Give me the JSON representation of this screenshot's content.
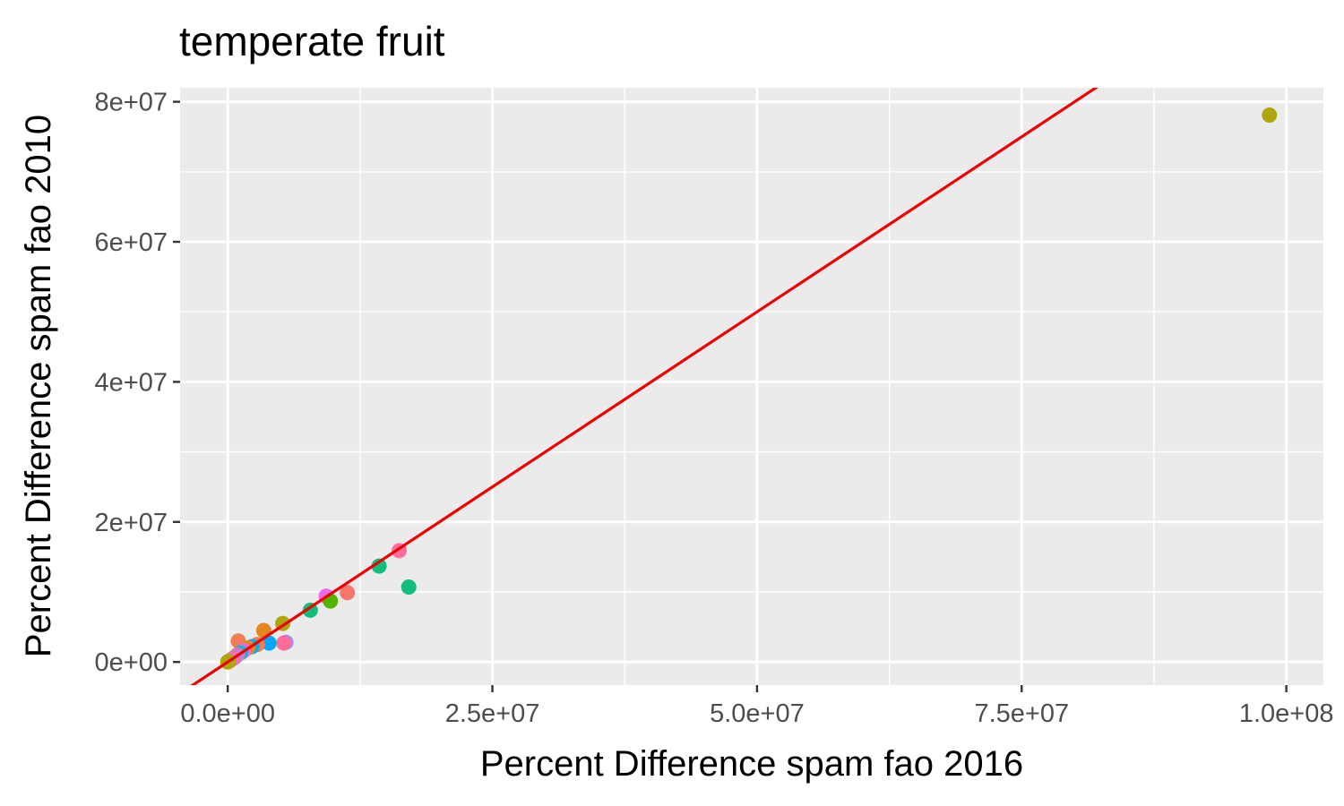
{
  "chart_data": {
    "type": "scatter",
    "title": "temperate fruit",
    "xlabel": "Percent Difference spam fao 2016",
    "ylabel": "Percent Difference spam fao 2010",
    "xlim": [
      -4500000,
      103500000
    ],
    "ylim": [
      -3300000,
      82000000
    ],
    "x_ticks": [
      0,
      25000000,
      50000000,
      75000000,
      100000000
    ],
    "x_tick_labels": [
      "0.0e+00",
      "2.5e+07",
      "5.0e+07",
      "7.5e+07",
      "1.0e+08"
    ],
    "y_ticks": [
      0,
      20000000,
      40000000,
      60000000,
      80000000
    ],
    "y_tick_labels": [
      "0e+00",
      "2e+07",
      "4e+07",
      "6e+07",
      "8e+07"
    ],
    "grid": true,
    "legend": "none",
    "reference_line": {
      "slope": 1,
      "intercept": 0,
      "color": "#ee0000"
    },
    "points": [
      {
        "x": 98400000,
        "y": 78100000,
        "color": "#b0a50a"
      },
      {
        "x": 16200000,
        "y": 15900000,
        "color": "#ff6d9b"
      },
      {
        "x": 14300000,
        "y": 13700000,
        "color": "#10bd7a"
      },
      {
        "x": 17100000,
        "y": 10700000,
        "color": "#10bd7a"
      },
      {
        "x": 11300000,
        "y": 9900000,
        "color": "#f8766d"
      },
      {
        "x": 9300000,
        "y": 9400000,
        "color": "#ef67eb"
      },
      {
        "x": 9700000,
        "y": 8700000,
        "color": "#53b400"
      },
      {
        "x": 7800000,
        "y": 7400000,
        "color": "#10bd7a"
      },
      {
        "x": 5200000,
        "y": 5500000,
        "color": "#b0a50a"
      },
      {
        "x": 3400000,
        "y": 4500000,
        "color": "#e7851e"
      },
      {
        "x": 1000000,
        "y": 3000000,
        "color": "#f27d52"
      },
      {
        "x": 5500000,
        "y": 2800000,
        "color": "#9590ff"
      },
      {
        "x": 5300000,
        "y": 2700000,
        "color": "#ff6d9b"
      },
      {
        "x": 3900000,
        "y": 2700000,
        "color": "#00a9ff"
      },
      {
        "x": 2800000,
        "y": 2500000,
        "color": "#f27d52"
      },
      {
        "x": 2300000,
        "y": 2200000,
        "color": "#00b0f6"
      },
      {
        "x": 1900000,
        "y": 2000000,
        "color": "#e7851e"
      },
      {
        "x": 1500000,
        "y": 1600000,
        "color": "#ef67eb"
      },
      {
        "x": 1200000,
        "y": 1300000,
        "color": "#00bbda"
      },
      {
        "x": 900000,
        "y": 1000000,
        "color": "#ff6d9b"
      },
      {
        "x": 700000,
        "y": 700000,
        "color": "#9590ff"
      },
      {
        "x": 500000,
        "y": 500000,
        "color": "#f8766d"
      },
      {
        "x": 300000,
        "y": 300000,
        "color": "#ef67eb"
      },
      {
        "x": 100000,
        "y": 100000,
        "color": "#b0a50a"
      },
      {
        "x": 0,
        "y": 0,
        "color": "#b0a50a"
      }
    ]
  }
}
